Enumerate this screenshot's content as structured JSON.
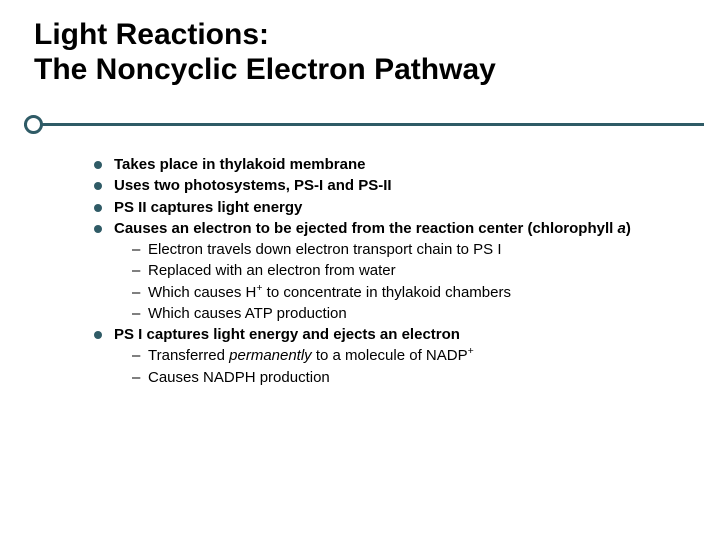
{
  "colors": {
    "accent": "#2f5b66",
    "text": "#000000",
    "background": "#ffffff"
  },
  "typography": {
    "title_fontsize": 30,
    "body_fontsize": 15,
    "large_sub_fontsize": 18,
    "font_family": "Arial"
  },
  "title": {
    "line1": "Light Reactions:",
    "line2": "The Noncyclic Electron Pathway"
  },
  "b1": "Takes place in thylakoid membrane",
  "b2": "Uses two photosystems, PS-I and PS-II",
  "b3": "PS II captures light energy",
  "b4a": "Causes an electron to be ejected from the reaction center (chlorophyll ",
  "b4b": "a",
  "b4c": ")",
  "b4s1": "Electron travels down electron transport chain to PS I",
  "b4s2": "Replaced with an electron from water",
  "b4s3a": "Which causes H",
  "b4s3b": "+",
  "b4s3c": " to concentrate in thylakoid chambers",
  "b4s4": "Which causes ATP production",
  "b5": "PS I captures light energy and ejects an electron",
  "b5s1a": "Transferred ",
  "b5s1b": "permanently",
  "b5s1c": " to a molecule of NADP",
  "b5s1d": "+",
  "b5s2": "Causes NADPH production"
}
